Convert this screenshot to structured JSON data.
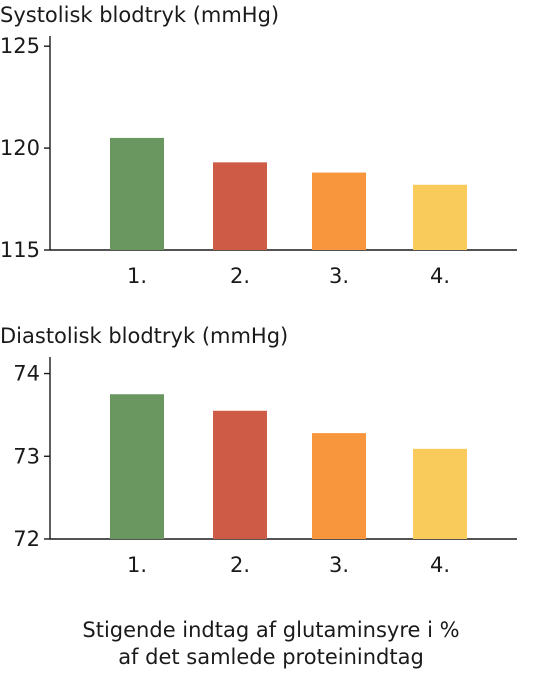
{
  "chart_data": [
    {
      "type": "bar",
      "title": "Systolisk blodtryk (mmHg)",
      "categories": [
        "1.",
        "2.",
        "3.",
        "4."
      ],
      "values": [
        120.5,
        119.3,
        118.8,
        118.2
      ],
      "colors": [
        "#6a9660",
        "#cd5b45",
        "#f7963d",
        "#f9cb5a"
      ],
      "ylim": [
        115,
        125.5
      ],
      "yticks": [
        "125",
        "120",
        "115"
      ],
      "ytick_values": [
        125,
        120,
        115
      ]
    },
    {
      "type": "bar",
      "title": "Diastolisk blodtryk (mmHg)",
      "categories": [
        "1.",
        "2.",
        "3.",
        "4."
      ],
      "values": [
        73.75,
        73.55,
        73.28,
        73.09
      ],
      "colors": [
        "#6a9660",
        "#cd5b45",
        "#f7963d",
        "#f9cb5a"
      ],
      "ylim": [
        72,
        74.2
      ],
      "yticks": [
        "74",
        "73",
        "72"
      ],
      "ytick_values": [
        74,
        73,
        72
      ]
    }
  ],
  "footer": {
    "line1": "Stigende indtag af glutaminsyre i %",
    "line2": "af det samlede proteinindtag"
  }
}
